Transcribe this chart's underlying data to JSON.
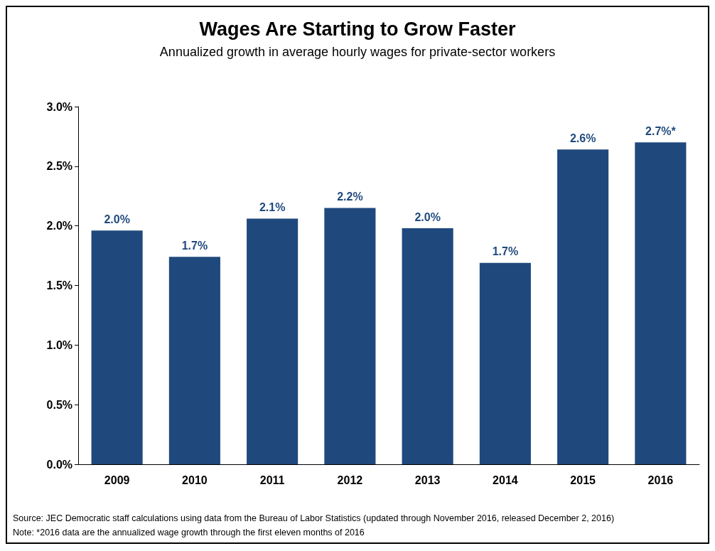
{
  "chart_data": {
    "type": "bar",
    "title": "Wages Are Starting to Grow Faster",
    "subtitle": "Annualized growth in average hourly wages for private-sector workers",
    "categories": [
      "2009",
      "2010",
      "2011",
      "2012",
      "2013",
      "2014",
      "2015",
      "2016"
    ],
    "values": [
      1.96,
      1.74,
      2.06,
      2.15,
      1.98,
      1.69,
      2.64,
      2.7
    ],
    "value_labels": [
      "2.0%",
      "1.7%",
      "2.1%",
      "2.2%",
      "2.0%",
      "1.7%",
      "2.6%",
      "2.7%*"
    ],
    "color": "#1f497d",
    "ylim": [
      0,
      3
    ],
    "yticks": [
      {
        "value": 0,
        "label": "0.0%"
      },
      {
        "value": 0.5,
        "label": "0.5%"
      },
      {
        "value": 1,
        "label": "1.0%"
      },
      {
        "value": 1.5,
        "label": "1.5%"
      },
      {
        "value": 2,
        "label": "2.0%"
      },
      {
        "value": 2.5,
        "label": "2.5%"
      },
      {
        "value": 3,
        "label": "3.0%"
      }
    ],
    "grid": false,
    "annotations": [
      "Source: JEC Democratic staff calculations using data from the Bureau of Labor Statistics (updated through November 2016, released December 2, 2016)",
      "Note: *2016 data are the annualized wage growth through the first eleven months of 2016"
    ]
  }
}
